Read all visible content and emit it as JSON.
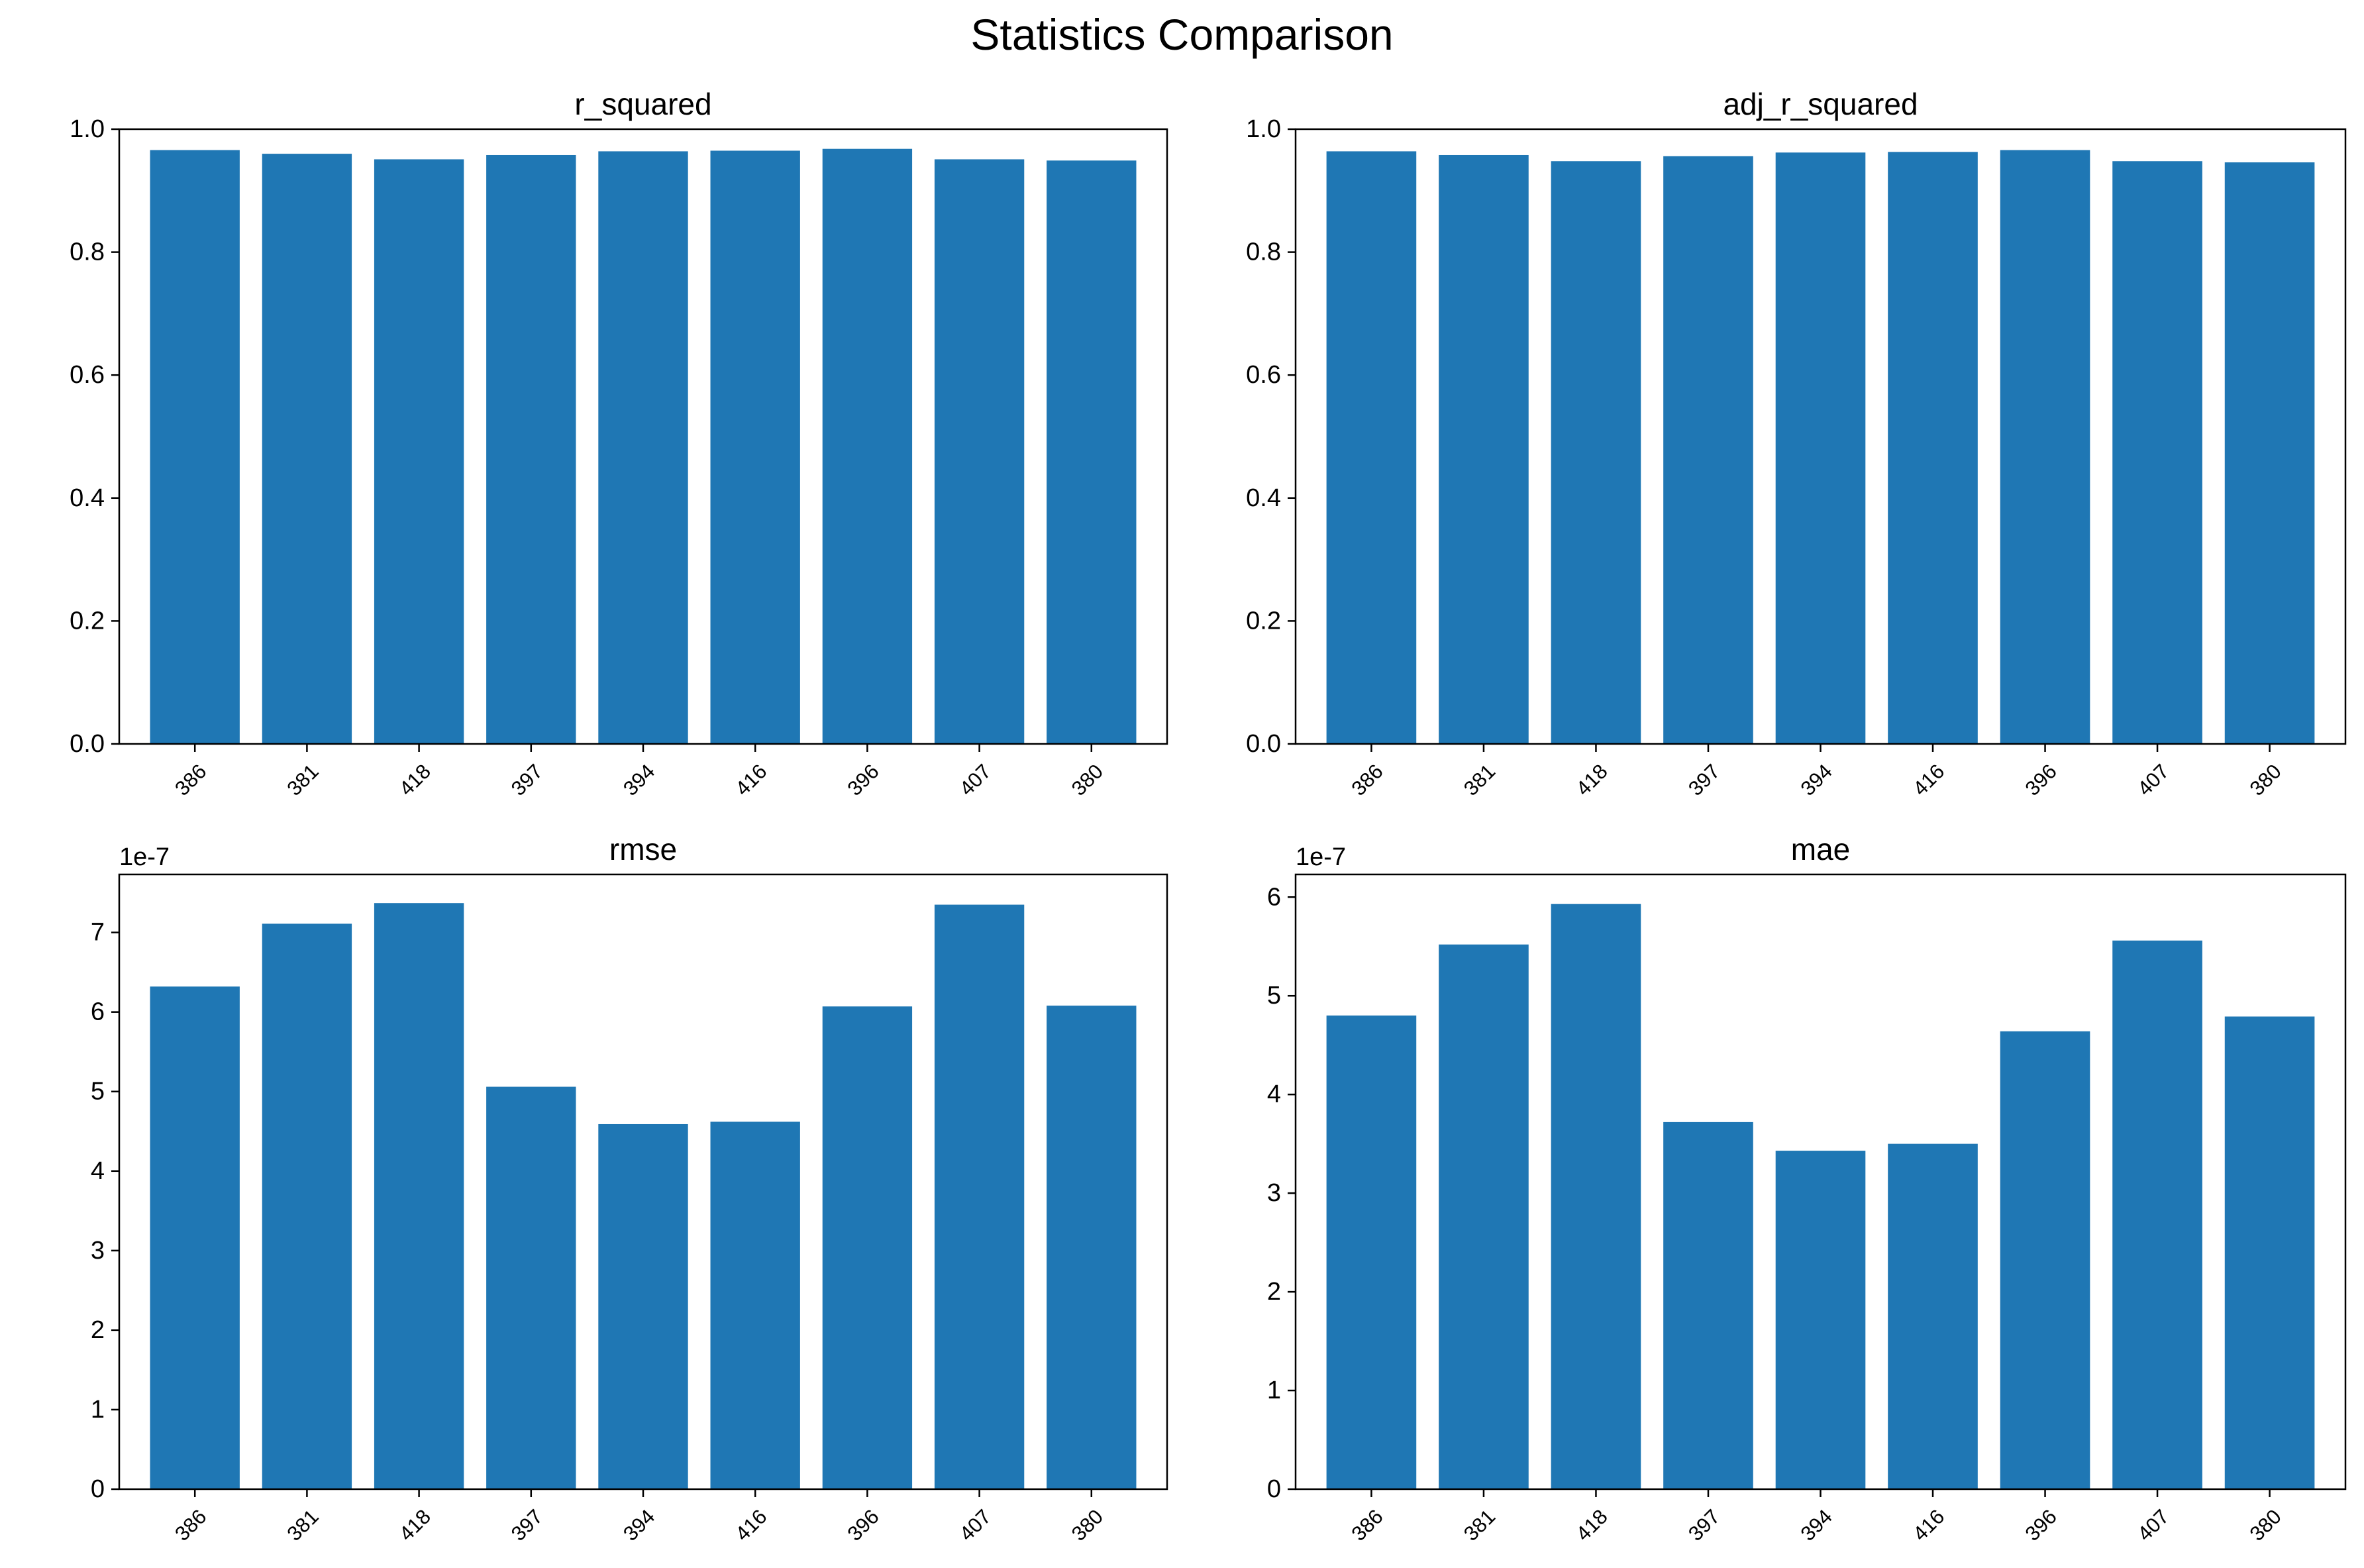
{
  "figure": {
    "title": "Statistics Comparison"
  },
  "style": {
    "bar_color": "#1f77b4",
    "axis_color": "#000000",
    "background": "#ffffff"
  },
  "chart_data": [
    {
      "type": "bar",
      "title": "r_squared",
      "xlabel": "",
      "ylabel": "",
      "categories": [
        "386",
        "381",
        "418",
        "397",
        "394",
        "416",
        "396",
        "407",
        "380"
      ],
      "values": [
        0.966,
        0.96,
        0.951,
        0.958,
        0.964,
        0.965,
        0.968,
        0.951,
        0.949
      ],
      "ylim": [
        0,
        1.0
      ],
      "yticks": [
        0.0,
        0.2,
        0.4,
        0.6,
        0.8,
        1.0
      ],
      "ytick_labels": [
        "0.0",
        "0.2",
        "0.4",
        "0.6",
        "0.8",
        "1.0"
      ],
      "offset_text": "",
      "grid": false,
      "legend": "none"
    },
    {
      "type": "bar",
      "title": "adj_r_squared",
      "xlabel": "",
      "ylabel": "",
      "categories": [
        "386",
        "381",
        "418",
        "397",
        "394",
        "416",
        "396",
        "407",
        "380"
      ],
      "values": [
        0.964,
        0.958,
        0.948,
        0.956,
        0.962,
        0.963,
        0.966,
        0.948,
        0.946
      ],
      "ylim": [
        0,
        1.0
      ],
      "yticks": [
        0.0,
        0.2,
        0.4,
        0.6,
        0.8,
        1.0
      ],
      "ytick_labels": [
        "0.0",
        "0.2",
        "0.4",
        "0.6",
        "0.8",
        "1.0"
      ],
      "offset_text": "",
      "grid": false,
      "legend": "none"
    },
    {
      "type": "bar",
      "title": "rmse",
      "xlabel": "",
      "ylabel": "",
      "categories": [
        "386",
        "381",
        "418",
        "397",
        "394",
        "416",
        "396",
        "407",
        "380"
      ],
      "values": [
        6.32e-07,
        7.11e-07,
        7.37e-07,
        5.06e-07,
        4.59e-07,
        4.62e-07,
        6.07e-07,
        7.35e-07,
        6.08e-07
      ],
      "ylim": [
        0,
        7.73e-07
      ],
      "yticks": [
        0,
        1e-07,
        2e-07,
        3e-07,
        4e-07,
        5e-07,
        6e-07,
        7e-07
      ],
      "ytick_labels": [
        "0",
        "1",
        "2",
        "3",
        "4",
        "5",
        "6",
        "7"
      ],
      "offset_text": "1e-7",
      "grid": false,
      "legend": "none"
    },
    {
      "type": "bar",
      "title": "mae",
      "xlabel": "",
      "ylabel": "",
      "categories": [
        "386",
        "381",
        "418",
        "397",
        "394",
        "416",
        "396",
        "407",
        "380"
      ],
      "values": [
        4.8e-07,
        5.52e-07,
        5.93e-07,
        3.72e-07,
        3.43e-07,
        3.5e-07,
        4.64e-07,
        5.56e-07,
        4.79e-07
      ],
      "ylim": [
        0,
        6.23e-07
      ],
      "yticks": [
        0,
        1e-07,
        2e-07,
        3e-07,
        4e-07,
        5e-07,
        6e-07
      ],
      "ytick_labels": [
        "0",
        "1",
        "2",
        "3",
        "4",
        "5",
        "6"
      ],
      "offset_text": "1e-7",
      "grid": false,
      "legend": "none"
    }
  ]
}
